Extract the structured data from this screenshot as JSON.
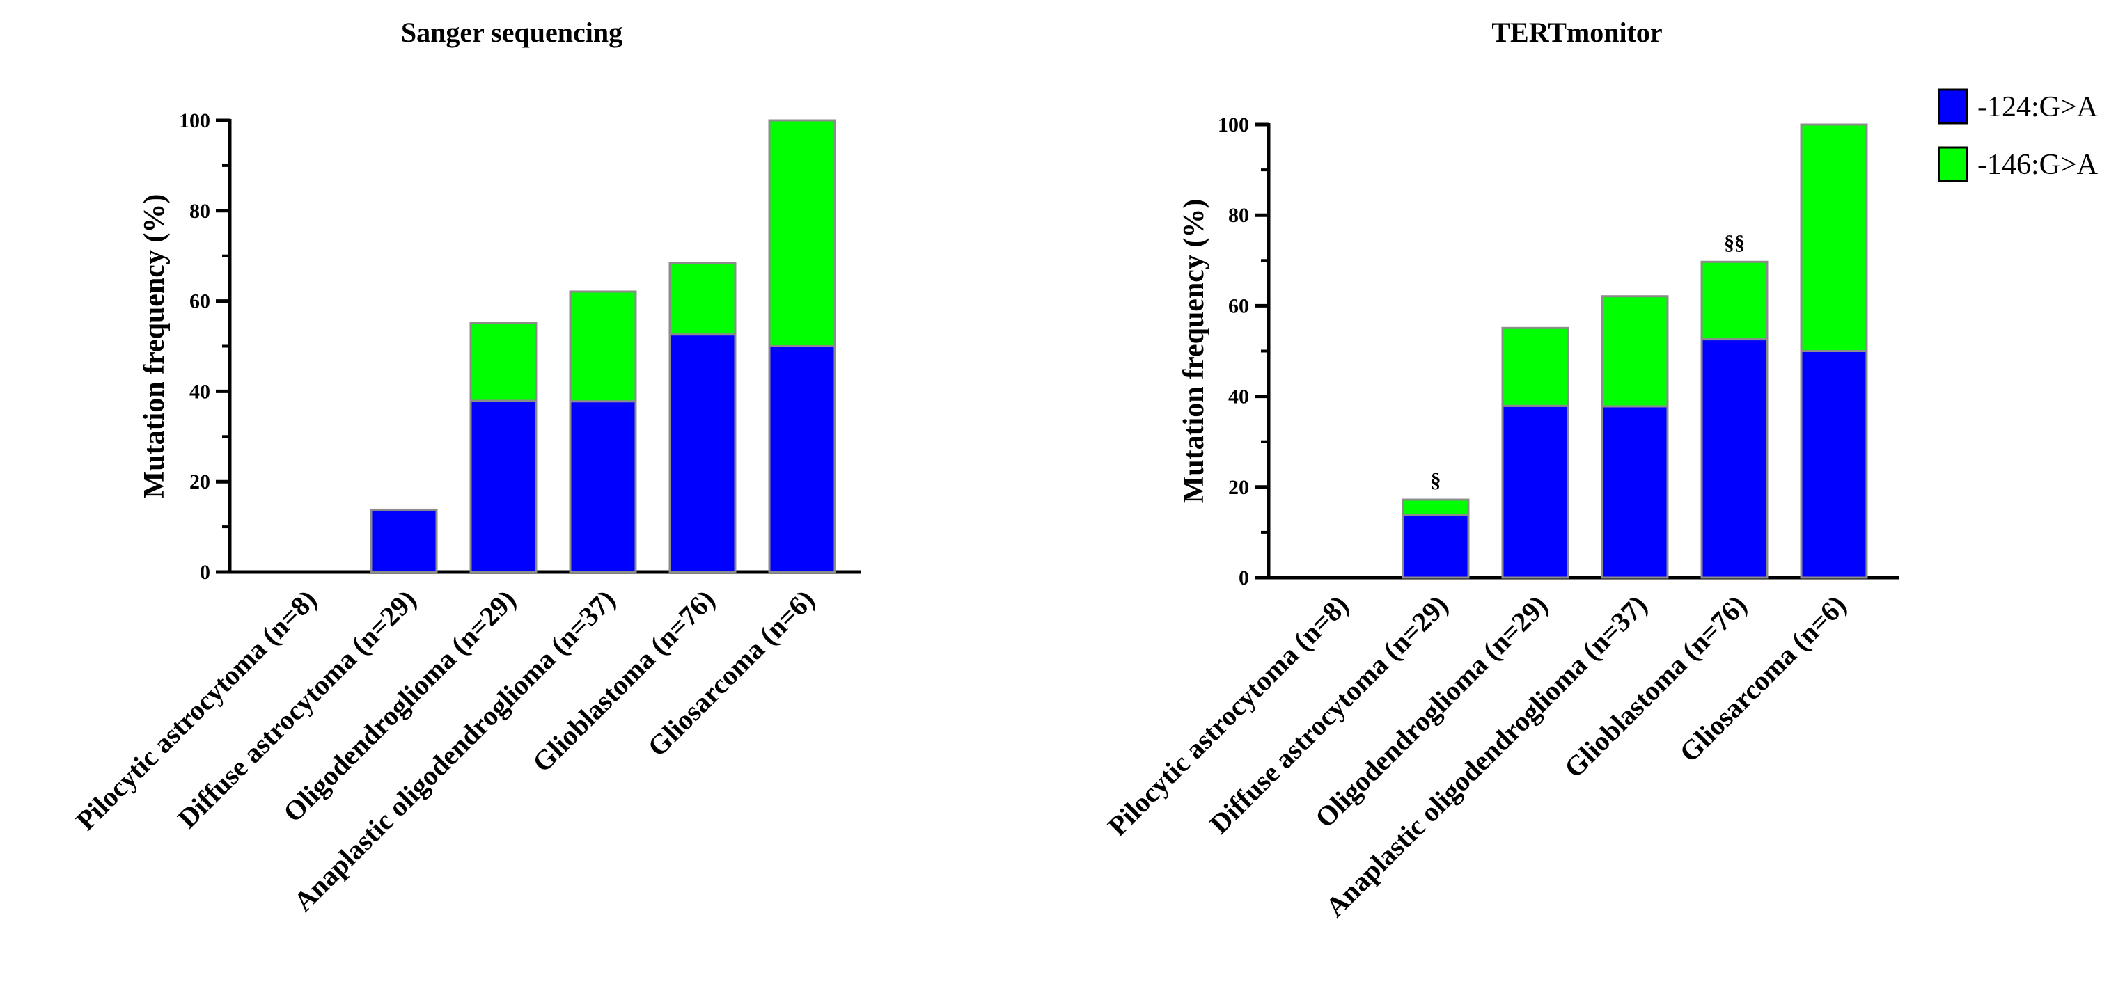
{
  "chart_data": [
    {
      "type": "bar",
      "stacked": true,
      "title": "Sanger sequencing",
      "xlabel": "",
      "ylabel": "Mutation frequency (%)",
      "ylim": [
        0,
        100
      ],
      "yticks": [
        0,
        20,
        40,
        60,
        80,
        100
      ],
      "categories": [
        "Pilocytic astrocytoma (n=8)",
        "Diffuse astrocytoma (n=29)",
        "Oligodendroglioma (n=29)",
        "Anaplastic oligodendroglioma (n=37)",
        "Glioblastoma (n=76)",
        "Gliosarcoma (n=6)"
      ],
      "series": [
        {
          "name": "-124:G>A",
          "color": "#0000ff",
          "values": [
            0,
            13.8,
            37.9,
            37.8,
            52.6,
            50
          ]
        },
        {
          "name": "-146:G>A",
          "color": "#00ff00",
          "values": [
            0,
            0,
            17.2,
            24.3,
            15.8,
            50
          ]
        }
      ],
      "annotations": []
    },
    {
      "type": "bar",
      "stacked": true,
      "title": "TERTmonitor",
      "xlabel": "",
      "ylabel": "Mutation frequency (%)",
      "ylim": [
        0,
        100
      ],
      "yticks": [
        0,
        20,
        40,
        60,
        80,
        100
      ],
      "categories": [
        "Pilocytic astrocytoma (n=8)",
        "Diffuse astrocytoma (n=29)",
        "Oligodendroglioma (n=29)",
        "Anaplastic oligodendroglioma (n=37)",
        "Glioblastoma (n=76)",
        "Gliosarcoma (n=6)"
      ],
      "series": [
        {
          "name": "-124:G>A",
          "color": "#0000ff",
          "values": [
            0,
            13.8,
            37.9,
            37.8,
            52.6,
            50
          ]
        },
        {
          "name": "-146:G>A",
          "color": "#00ff00",
          "values": [
            0,
            3.4,
            17.2,
            24.3,
            17.1,
            50
          ]
        }
      ],
      "annotations": [
        {
          "category_index": 1,
          "text": "§"
        },
        {
          "category_index": 4,
          "text": "§§"
        }
      ]
    }
  ],
  "legend": {
    "placement": "top-right",
    "items": [
      {
        "label": "-124:G>A",
        "color": "#0000ff"
      },
      {
        "label": "-146:G>A",
        "color": "#00ff00"
      }
    ]
  }
}
